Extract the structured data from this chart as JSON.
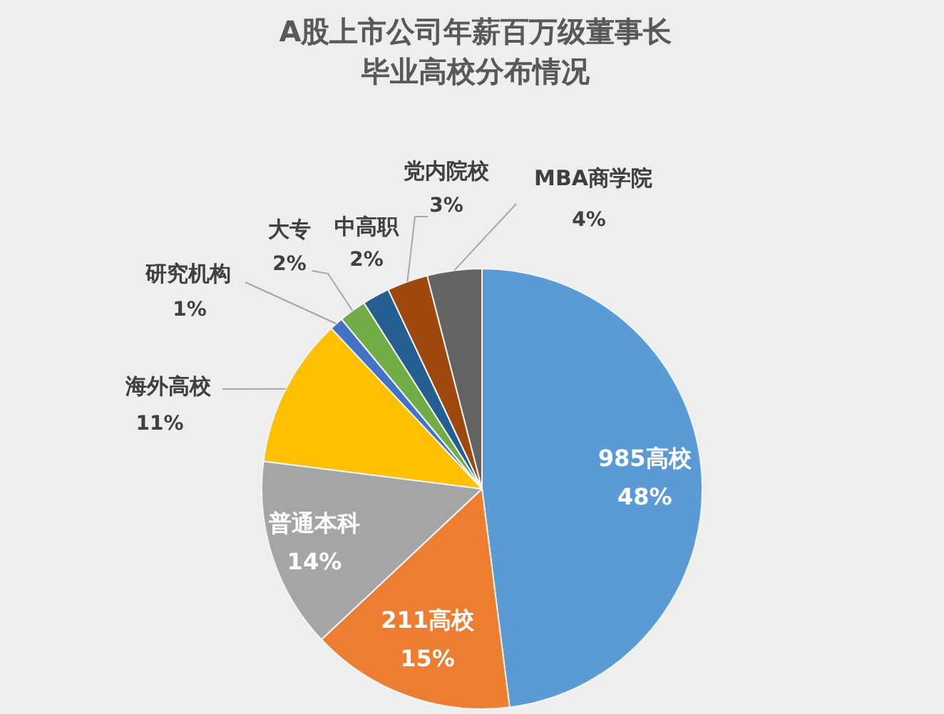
{
  "chart_data": {
    "type": "pie",
    "title": "A股上市公司年薪百万级董事长毕业高校分布情况",
    "categories": [
      "985高校",
      "211高校",
      "普通本科",
      "海外高校",
      "研究机构",
      "大专",
      "中高职",
      "党内院校",
      "MBA商学院"
    ],
    "values": [
      48,
      15,
      14,
      11,
      1,
      2,
      2,
      3,
      4
    ],
    "colors": [
      "#5b9bd5",
      "#ed7d31",
      "#a5a5a5",
      "#ffc000",
      "#4472c4",
      "#70ad47",
      "#255e91",
      "#9e480e",
      "#636363"
    ],
    "value_labels": [
      "48%",
      "15%",
      "14%",
      "11%",
      "1%",
      "2%",
      "2%",
      "3%",
      "4%"
    ]
  }
}
